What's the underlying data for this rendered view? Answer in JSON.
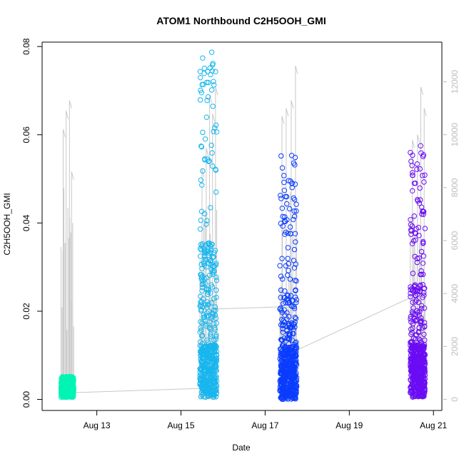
{
  "chart_data": {
    "type": "scatter",
    "title": "ATOM1 Northbound C2H5OOH_GMI",
    "xlabel": "Date",
    "ylabel": "C2H5OOH_GMI",
    "x_tick_labels": [
      "Aug 13",
      "Aug 15",
      "Aug 17",
      "Aug 19",
      "Aug 21"
    ],
    "x_tick_values": [
      13,
      15,
      17,
      19,
      21
    ],
    "xlim": [
      11.7,
      21.2
    ],
    "ylim": [
      -0.0025,
      0.081
    ],
    "y_ticks": [
      0.0,
      0.02,
      0.04,
      0.06,
      0.08
    ],
    "y_tick_labels": [
      "0.00",
      "0.02",
      "0.04",
      "0.06",
      "0.08"
    ],
    "y2_ticks": [
      0,
      2000,
      4000,
      6000,
      8000,
      10000,
      12000
    ],
    "y2_tick_labels": [
      "0",
      "2000",
      "4000",
      "6000",
      "8000",
      "10000",
      "12000"
    ],
    "y2lim": [
      -420,
      13500
    ],
    "secondary_series_color": "#c8c8c8",
    "series": [
      {
        "color": "#00f5b4",
        "x_range": [
          12.15,
          12.45
        ],
        "y_min": 0.0005,
        "y_max": 0.0052,
        "altitude_spikes": [
          [
            12.2,
            10200
          ],
          [
            12.27,
            10900
          ],
          [
            12.35,
            11300
          ],
          [
            12.4,
            8600
          ]
        ]
      },
      {
        "color": "#17b6ee",
        "x_range": [
          15.45,
          15.85
        ],
        "y_min": 0.0005,
        "y_max": 0.0787,
        "altitude_spikes": [
          [
            15.5,
            8700
          ],
          [
            15.6,
            9500
          ],
          [
            15.68,
            11500
          ],
          [
            15.75,
            10800
          ],
          [
            15.82,
            11800
          ]
        ]
      },
      {
        "color": "#0a3cff",
        "x_range": [
          17.35,
          17.75
        ],
        "y_min": 0.0,
        "y_max": 0.0553,
        "altitude_spikes": [
          [
            17.4,
            10700
          ],
          [
            17.5,
            11000
          ],
          [
            17.62,
            11300
          ],
          [
            17.72,
            12600
          ]
        ]
      },
      {
        "color": "#6a0cf5",
        "x_range": [
          20.45,
          20.8
        ],
        "y_min": 0.0005,
        "y_max": 0.0575,
        "altitude_spikes": [
          [
            20.5,
            9800
          ],
          [
            20.62,
            10000
          ],
          [
            20.7,
            11800
          ],
          [
            20.78,
            11000
          ]
        ]
      }
    ],
    "secondary_connectors": [
      [
        [
          12.3,
          0.0015
        ],
        [
          15.5,
          0.0025
        ]
      ],
      [
        [
          15.8,
          0.0205
        ],
        [
          17.4,
          0.021
        ]
      ],
      [
        [
          17.6,
          0.0105
        ],
        [
          20.55,
          0.0235
        ]
      ]
    ],
    "grid": false,
    "legend": "none"
  }
}
